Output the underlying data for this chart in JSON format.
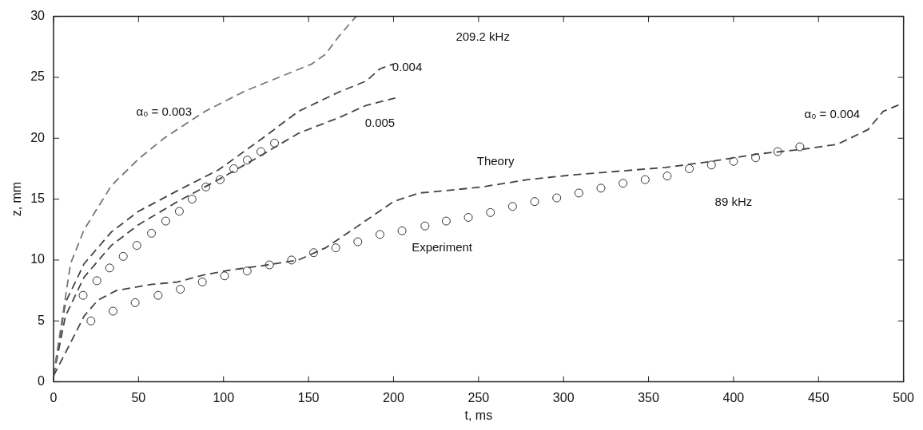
{
  "chart_data": {
    "type": "line",
    "xlabel": "t, ms",
    "ylabel": "z, mm",
    "xlim": [
      0,
      500
    ],
    "ylim": [
      0,
      30
    ],
    "xticks": [
      0,
      50,
      100,
      150,
      200,
      250,
      300,
      350,
      400,
      450,
      500
    ],
    "yticks": [
      0,
      5,
      10,
      15,
      20,
      25,
      30
    ],
    "line_style": "dashed",
    "series": [
      {
        "marker": "none",
        "color": "#777777",
        "x": [
          0,
          10,
          18,
          34,
          50,
          65,
          89,
          113,
          129,
          152,
          160,
          168,
          178
        ],
        "values": [
          0.5,
          9.7,
          12.5,
          16.1,
          18.3,
          20,
          22.2,
          23.9,
          24.8,
          26.1,
          26.9,
          28.4,
          30
        ]
      },
      {
        "marker": "none",
        "color": "#444444",
        "x": [
          0,
          7,
          18,
          34,
          50,
          73,
          97,
          121,
          144,
          168,
          184,
          192,
          200
        ],
        "values": [
          0.5,
          6.5,
          9.7,
          12.3,
          14,
          15.7,
          17.4,
          19.8,
          22.2,
          23.8,
          24.7,
          25.7,
          26.1
        ]
      },
      {
        "marker": "none",
        "color": "#444444",
        "x": [
          0,
          7,
          18,
          34,
          50,
          73,
          97,
          121,
          144,
          168,
          184,
          201
        ],
        "values": [
          0.5,
          5.4,
          8.6,
          11.2,
          12.9,
          14.8,
          16.6,
          18.5,
          20.4,
          21.7,
          22.7,
          23.3
        ]
      },
      {
        "marker": "none",
        "color": "#444444",
        "x": [
          0,
          10,
          18,
          26,
          37,
          58,
          73,
          89,
          105,
          121,
          144,
          160,
          176,
          200,
          215,
          231,
          252,
          279,
          306,
          333,
          360,
          387,
          414,
          441,
          461,
          479,
          488,
          500
        ],
        "values": [
          0.5,
          3.2,
          5.4,
          6.7,
          7.5,
          8,
          8.2,
          8.8,
          9.2,
          9.5,
          10,
          11,
          12.5,
          14.8,
          15.5,
          15.7,
          16,
          16.6,
          17,
          17.3,
          17.6,
          18.1,
          18.7,
          19.1,
          19.5,
          20.7,
          22.2,
          22.9
        ]
      },
      {
        "type": "scatter",
        "marker": "circle",
        "color": "#333333",
        "x": [
          17.4,
          25.5,
          33,
          41,
          49,
          57.6,
          66,
          74,
          81.5,
          89.6,
          98,
          106,
          114,
          122,
          130
        ],
        "values": [
          7.1,
          8.3,
          9.35,
          10.3,
          11.2,
          12.2,
          13.2,
          14,
          15,
          16,
          16.6,
          17.5,
          18.2,
          18.9,
          19.6
        ]
      },
      {
        "type": "scatter",
        "marker": "circle",
        "color": "#333333",
        "x": [
          22,
          35,
          48,
          61.5,
          74.6,
          87.5,
          100.6,
          113.9,
          127,
          140,
          153,
          166,
          179,
          192,
          205,
          218.5,
          231,
          244,
          257,
          270,
          283,
          296,
          309,
          322,
          335,
          348,
          361,
          374,
          387,
          400,
          413,
          426,
          439
        ],
        "values": [
          5,
          5.8,
          6.5,
          7.1,
          7.6,
          8.2,
          8.7,
          9.1,
          9.6,
          10,
          10.6,
          11,
          11.5,
          12.1,
          12.4,
          12.8,
          13.2,
          13.5,
          13.9,
          14.4,
          14.8,
          15.1,
          15.5,
          15.9,
          16.3,
          16.6,
          16.9,
          17.5,
          17.8,
          18.1,
          18.4,
          18.9,
          19.3
        ]
      }
    ],
    "annotations": [
      "209.2 kHz",
      "α₀ = 0.003",
      "0.004",
      "0.005",
      "Theory",
      "Experiment",
      "89 kHz",
      "α₀ = 0.004"
    ]
  }
}
